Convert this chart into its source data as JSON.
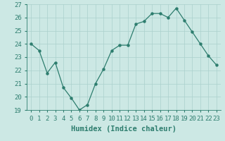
{
  "x": [
    0,
    1,
    2,
    3,
    4,
    5,
    6,
    7,
    8,
    9,
    10,
    11,
    12,
    13,
    14,
    15,
    16,
    17,
    18,
    19,
    20,
    21,
    22,
    23
  ],
  "y": [
    24.0,
    23.5,
    21.8,
    22.6,
    20.7,
    19.9,
    19.0,
    19.4,
    21.0,
    22.1,
    23.5,
    23.9,
    23.9,
    25.5,
    25.7,
    26.3,
    26.3,
    26.0,
    26.7,
    25.8,
    24.9,
    24.0,
    23.1,
    22.4
  ],
  "xlabel": "Humidex (Indice chaleur)",
  "ylim": [
    19,
    27
  ],
  "yticks": [
    19,
    20,
    21,
    22,
    23,
    24,
    25,
    26,
    27
  ],
  "xticks": [
    0,
    1,
    2,
    3,
    4,
    5,
    6,
    7,
    8,
    9,
    10,
    11,
    12,
    13,
    14,
    15,
    16,
    17,
    18,
    19,
    20,
    21,
    22,
    23
  ],
  "line_color": "#2d7d6e",
  "marker": "o",
  "marker_size": 2.2,
  "bg_color": "#cce8e4",
  "grid_color": "#aad0cc",
  "tick_label_fontsize": 6.5,
  "xlabel_fontsize": 7.5
}
